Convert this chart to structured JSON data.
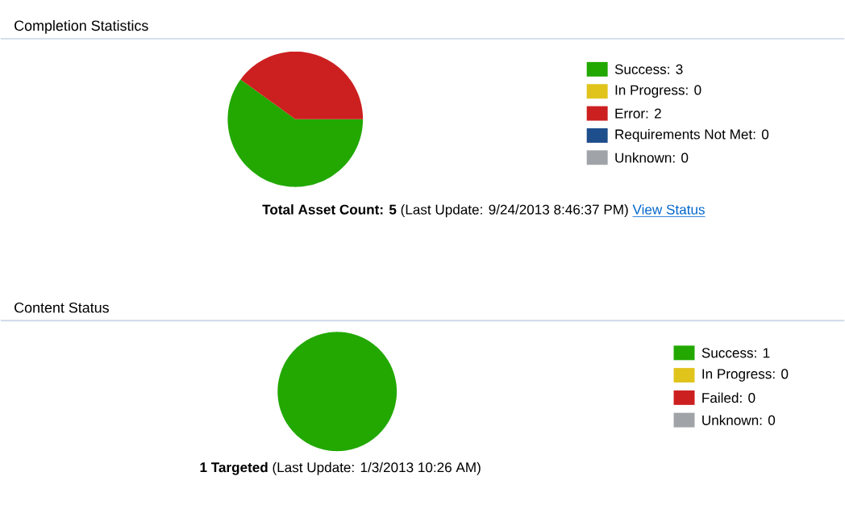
{
  "chart_data": [
    {
      "type": "pie",
      "title": "Completion Statistics",
      "categories": [
        "Success: 3",
        "In Progress: 0",
        "Error: 2",
        "Requirements Not Met: 0",
        "Unknown: 0"
      ],
      "values": [
        3,
        0,
        2,
        0,
        0
      ],
      "colors": [
        "#22a800",
        "#e0c41c",
        "#cc2020",
        "#1f4e8c",
        "#a0a4a8"
      ],
      "legend": "right",
      "annotations": [
        "**Total Asset Count: 5** (Last Update: 9/24/2013 8:46:37 PM)",
        "View Status"
      ]
    },
    {
      "type": "pie",
      "title": "Content Status",
      "categories": [
        "Success: 1",
        "In Progress: 0",
        "Failed: 0",
        "Unknown: 0"
      ],
      "values": [
        1,
        0,
        0,
        0
      ],
      "colors": [
        "#22a800",
        "#e0c41c",
        "#cc2020",
        "#a0a4a8"
      ],
      "legend": "right",
      "annotations": [
        "**1 Targeted** (Last Update: 1/3/2013 10:26 AM)"
      ]
    }
  ]
}
